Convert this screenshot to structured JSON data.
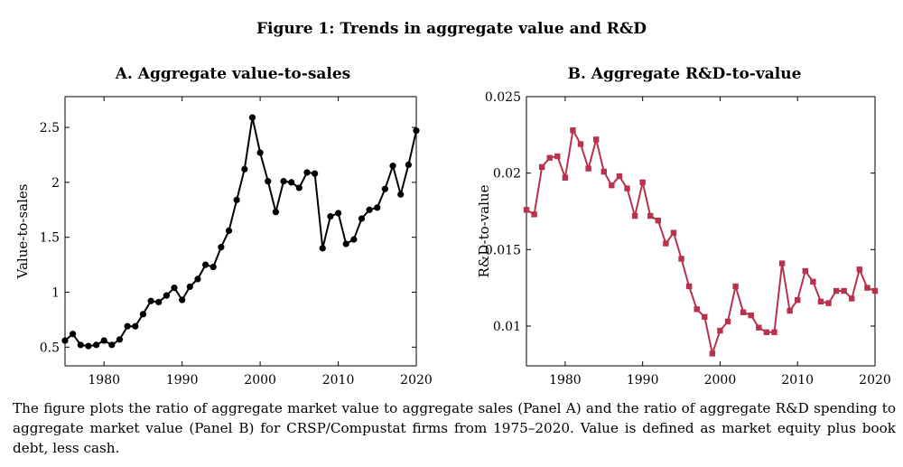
{
  "figure_title": "Figure 1: Trends in aggregate value and R&D",
  "caption": "The figure plots the ratio of aggregate market value to aggregate sales (Panel A) and the ratio of aggregate R&D spending to aggregate market value (Panel B) for CRSP/Compustat firms from 1975–2020. Value is defined as market equity plus book debt, less cash.",
  "colors": {
    "seriesA": "#000000",
    "seriesB": "#b8324c"
  },
  "chart_data": [
    {
      "type": "line",
      "title": "A. Aggregate value-to-sales",
      "xlabel": "",
      "ylabel": "Value-to-sales",
      "xlim": [
        1975,
        2020
      ],
      "ylim": [
        0.33,
        2.78
      ],
      "xticks": [
        1980,
        1990,
        2000,
        2010,
        2020
      ],
      "xtick_labels": [
        "1980",
        "1990",
        "2000",
        "2010",
        "2020"
      ],
      "yticks": [
        0.5,
        1,
        1.5,
        2,
        2.5
      ],
      "ytick_labels": [
        "0.5",
        "1",
        "1.5",
        "2",
        "2.5"
      ],
      "marker": "circle",
      "series": [
        {
          "name": "Value-to-sales",
          "x": [
            1975,
            1976,
            1977,
            1978,
            1979,
            1980,
            1981,
            1982,
            1983,
            1984,
            1985,
            1986,
            1987,
            1988,
            1989,
            1990,
            1991,
            1992,
            1993,
            1994,
            1995,
            1996,
            1997,
            1998,
            1999,
            2000,
            2001,
            2002,
            2003,
            2004,
            2005,
            2006,
            2007,
            2008,
            2009,
            2010,
            2011,
            2012,
            2013,
            2014,
            2015,
            2016,
            2017,
            2018,
            2019,
            2020
          ],
          "y": [
            0.56,
            0.62,
            0.52,
            0.51,
            0.52,
            0.56,
            0.52,
            0.57,
            0.69,
            0.69,
            0.8,
            0.92,
            0.91,
            0.97,
            1.04,
            0.93,
            1.05,
            1.12,
            1.25,
            1.23,
            1.41,
            1.56,
            1.84,
            2.12,
            2.59,
            2.27,
            2.01,
            1.73,
            2.01,
            2.0,
            1.95,
            2.09,
            2.08,
            1.4,
            1.69,
            1.72,
            1.44,
            1.48,
            1.67,
            1.75,
            1.77,
            1.94,
            2.15,
            1.89,
            2.16,
            2.47
          ]
        }
      ]
    },
    {
      "type": "line",
      "title": "B. Aggregate R&D-to-value",
      "xlabel": "",
      "ylabel": "R&D-to-value",
      "xlim": [
        1975,
        2020
      ],
      "ylim": [
        0.0074,
        0.025
      ],
      "xticks": [
        1980,
        1990,
        2000,
        2010,
        2020
      ],
      "xtick_labels": [
        "1980",
        "1990",
        "2000",
        "2010",
        "2020"
      ],
      "yticks": [
        0.01,
        0.015,
        0.02,
        0.025
      ],
      "ytick_labels": [
        "0.01",
        "0.015",
        "0.02",
        "0.025"
      ],
      "marker": "square",
      "series": [
        {
          "name": "R&D-to-value",
          "x": [
            1975,
            1976,
            1977,
            1978,
            1979,
            1980,
            1981,
            1982,
            1983,
            1984,
            1985,
            1986,
            1987,
            1988,
            1989,
            1990,
            1991,
            1992,
            1993,
            1994,
            1995,
            1996,
            1997,
            1998,
            1999,
            2000,
            2001,
            2002,
            2003,
            2004,
            2005,
            2006,
            2007,
            2008,
            2009,
            2010,
            2011,
            2012,
            2013,
            2014,
            2015,
            2016,
            2017,
            2018,
            2019,
            2020
          ],
          "y": [
            0.0176,
            0.0173,
            0.0204,
            0.021,
            0.0211,
            0.0197,
            0.0228,
            0.0219,
            0.0203,
            0.0222,
            0.0201,
            0.0192,
            0.0198,
            0.019,
            0.0172,
            0.0194,
            0.0172,
            0.0169,
            0.0154,
            0.0161,
            0.0144,
            0.0126,
            0.0111,
            0.0106,
            0.0082,
            0.0097,
            0.0103,
            0.0126,
            0.0109,
            0.0107,
            0.0099,
            0.0096,
            0.0096,
            0.0141,
            0.011,
            0.0117,
            0.0136,
            0.0129,
            0.0116,
            0.0115,
            0.0123,
            0.0123,
            0.0118,
            0.0137,
            0.0125,
            0.0123
          ]
        }
      ]
    }
  ]
}
